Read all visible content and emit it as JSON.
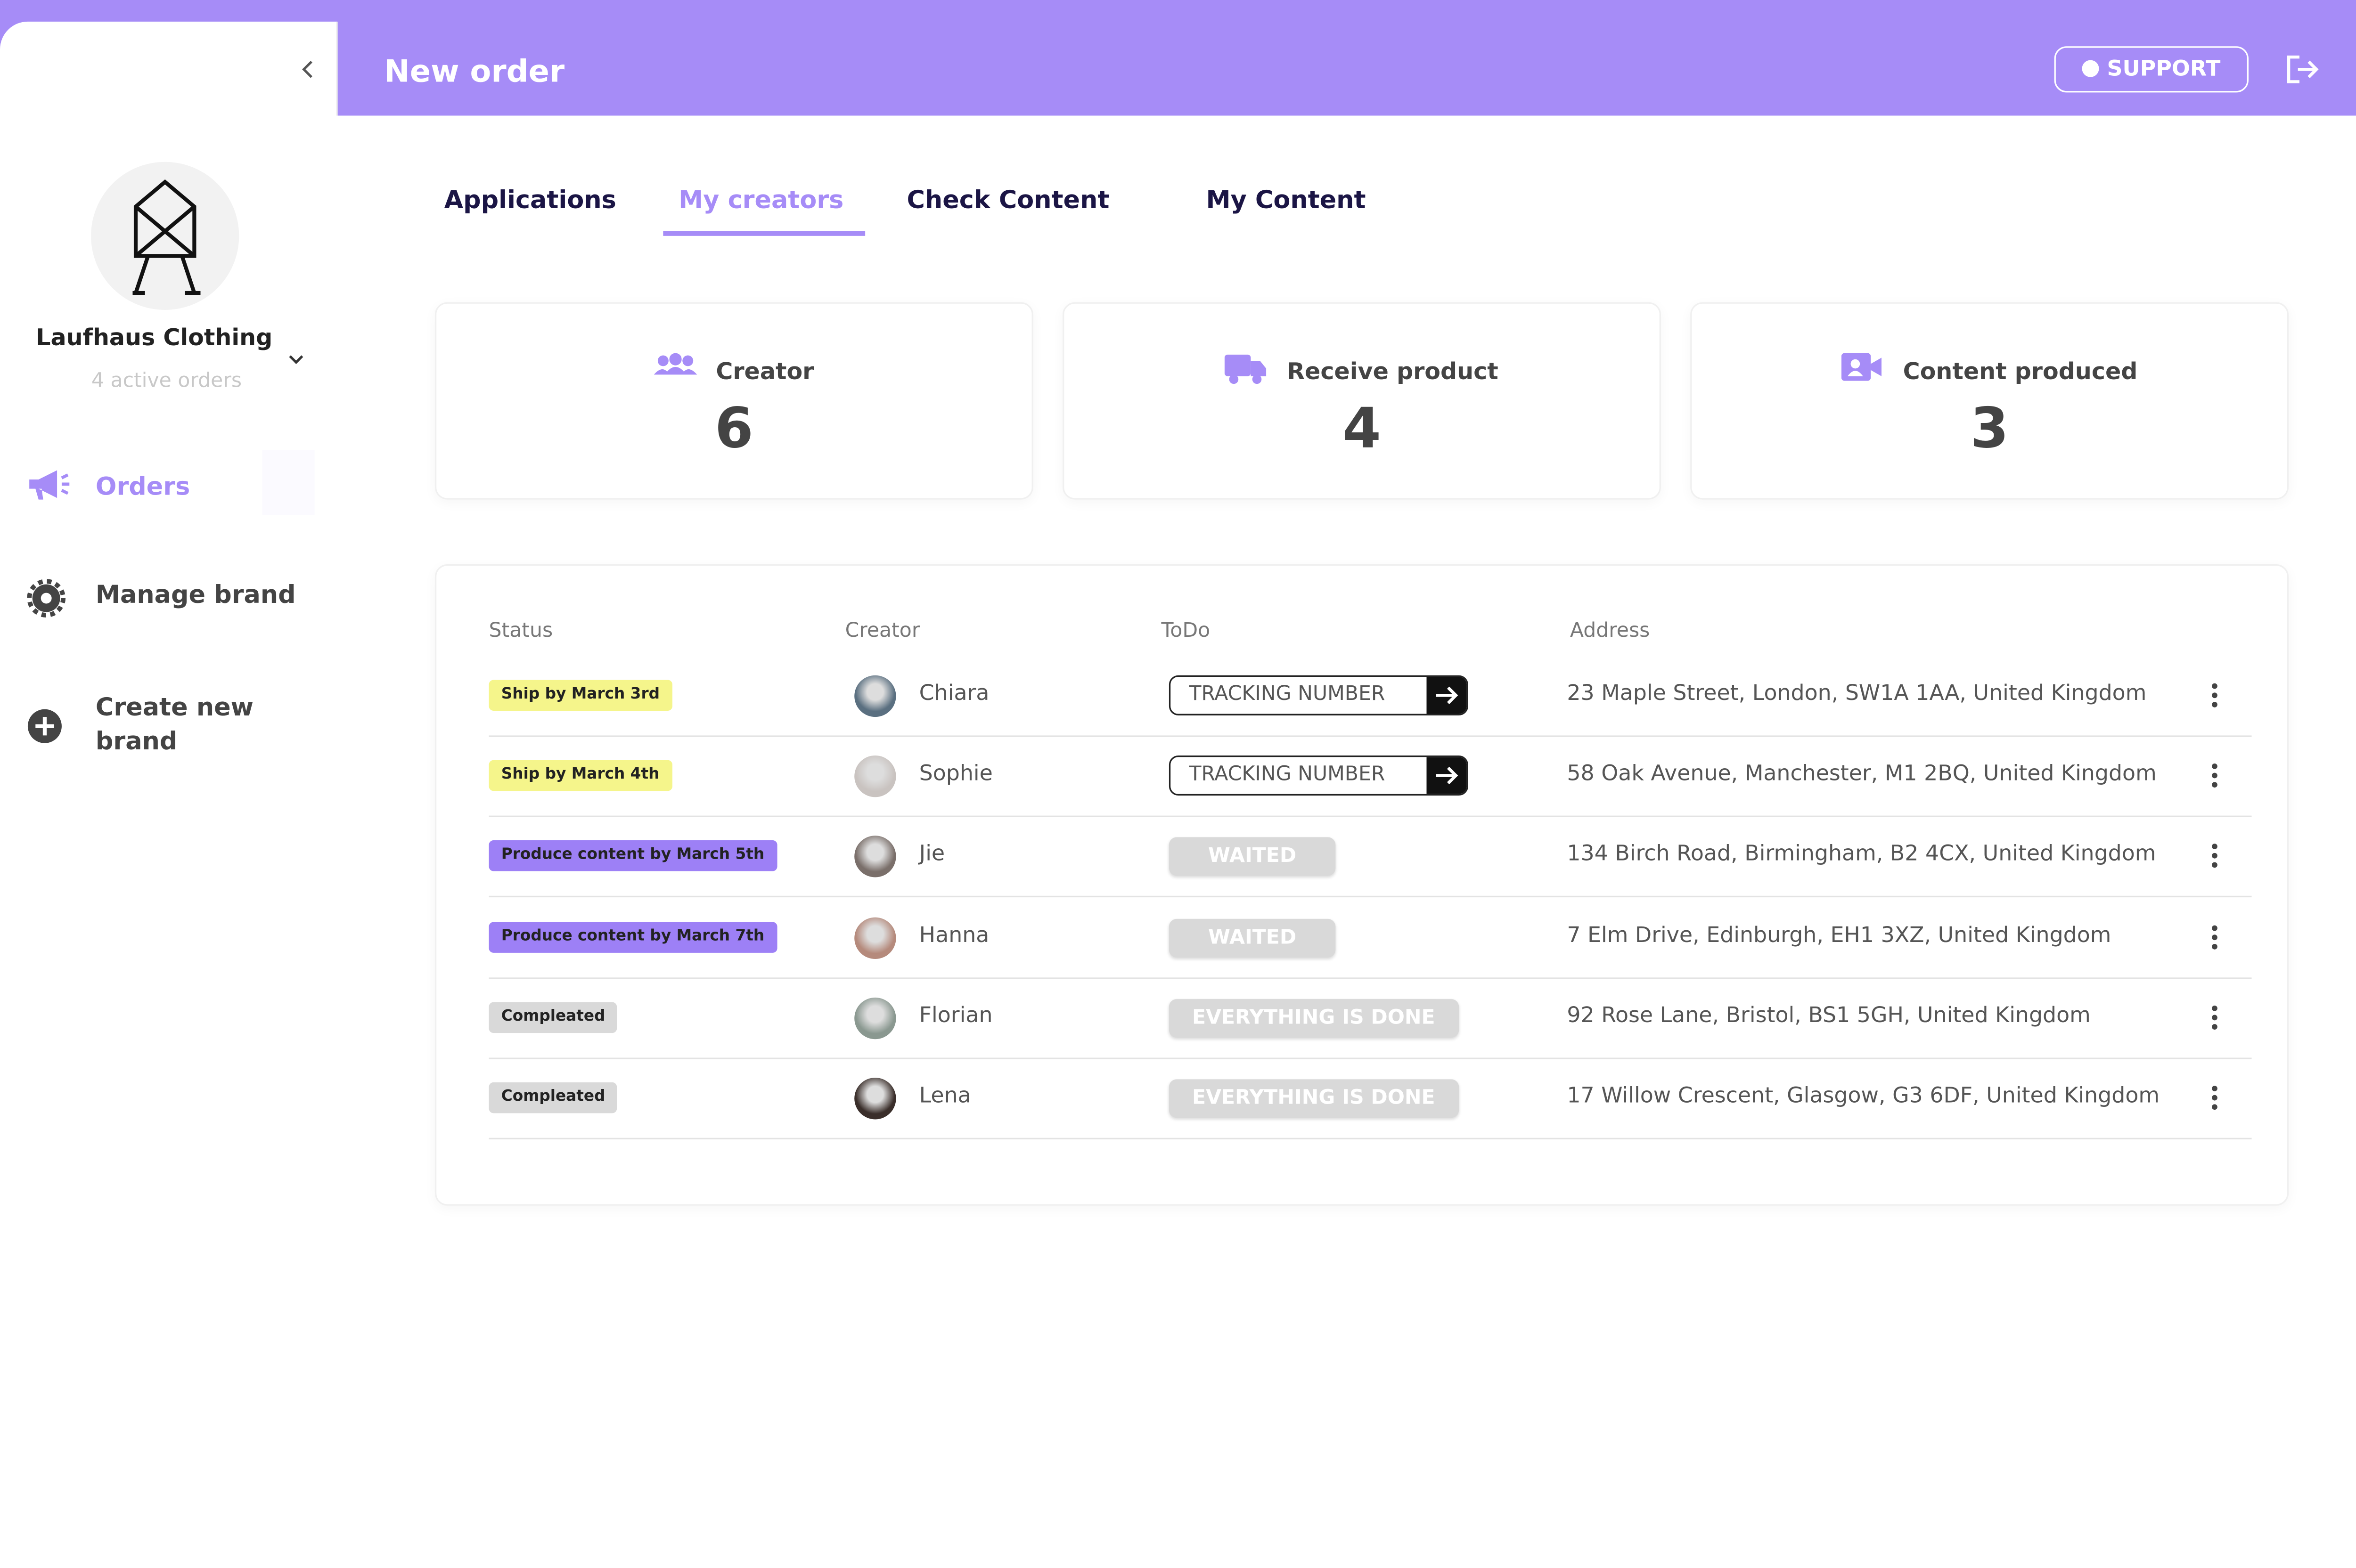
{
  "header": {
    "title": "New order",
    "support": "SUPPORT"
  },
  "sidebar": {
    "brand": "Laufhaus Clothing",
    "active_orders": "4 active orders",
    "nav": [
      "Orders",
      "Manage brand",
      "Create new brand"
    ]
  },
  "tabs": [
    "Applications",
    "My creators",
    "Check Content",
    "My Content"
  ],
  "stats": [
    {
      "label": "Creator",
      "value": 6
    },
    {
      "label": "Receive product",
      "value": 4
    },
    {
      "label": "Content produced",
      "value": 3
    }
  ],
  "table": {
    "columns": [
      "Status",
      "Creator",
      "ToDo",
      "Address"
    ],
    "rows": [
      [
        "Ship by March 3rd",
        "Chiara",
        "TRACKING NUMBER",
        "23 Maple Street, London, SW1A 1AA, United Kingdom"
      ],
      [
        "Ship by March 4th",
        "Sophie",
        "TRACKING NUMBER",
        "58 Oak Avenue, Manchester, M1 2BQ, United Kingdom"
      ],
      [
        "Produce content by March 5th",
        "Jie",
        "WAITED",
        "134 Birch Road, Birmingham, B2 4CX, United Kingdom"
      ],
      [
        "Produce content by March 7th",
        "Hanna",
        "WAITED",
        "7 Elm Drive, Edinburgh, EH1 3XZ, United Kingdom"
      ],
      [
        "Compleated",
        "Florian",
        "EVERYTHING IS DONE",
        "92 Rose Lane, Bristol, BS1 5GH, United Kingdom"
      ],
      [
        "Compleated",
        "Lena",
        "EVERYTHING IS DONE",
        "17 Willow Crescent, Glasgow, G3 6DF, United Kingdom"
      ]
    ]
  }
}
